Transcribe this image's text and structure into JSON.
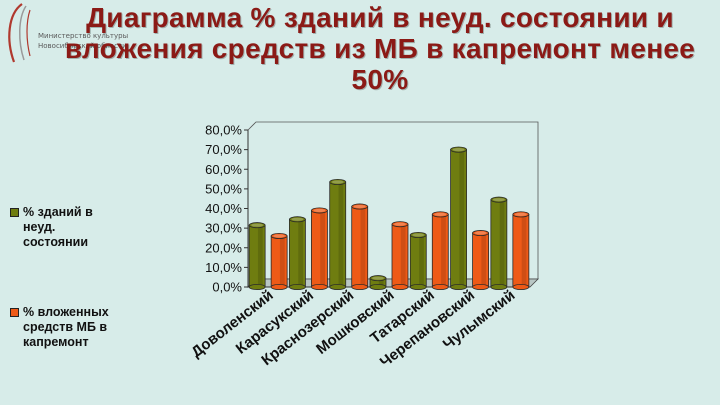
{
  "header": {
    "org_line1": "Министерство культуры",
    "org_line2": "Новосибирской области",
    "title": "Диаграмма % зданий в неуд. состоянии и вложения средств из МБ в капремонт менее 50%"
  },
  "colors": {
    "background": "#d7ece9",
    "title": "#8b1a16",
    "series_1": "#6f7d10",
    "series_2": "#ee5a17"
  },
  "chart_data": {
    "type": "bar",
    "title": "Диаграмма % зданий в неуд. состоянии и вложения средств из МБ в капремонт менее 50%",
    "categories": [
      "Доволенский",
      "Карасукский",
      "Краснозерский",
      "Мошковский",
      "Татарский",
      "Черепановский",
      "Чулымский"
    ],
    "series": [
      {
        "name": "% зданий в неуд. состоянии",
        "values": [
          31.5,
          34.5,
          53.5,
          4.5,
          26.5,
          70.0,
          44.5
        ]
      },
      {
        "name": "% вложенных средств МБ в капремонт",
        "values": [
          26.0,
          39.0,
          41.0,
          32.0,
          37.0,
          27.5,
          37.0
        ]
      }
    ],
    "ylim": [
      0,
      80
    ],
    "yticks": [
      "0,0%",
      "10,0%",
      "20,0%",
      "30,0%",
      "40,0%",
      "50,0%",
      "60,0%",
      "70,0%",
      "80,0%"
    ],
    "xlabel": "",
    "ylabel": "",
    "legend": "left",
    "grid": false
  }
}
